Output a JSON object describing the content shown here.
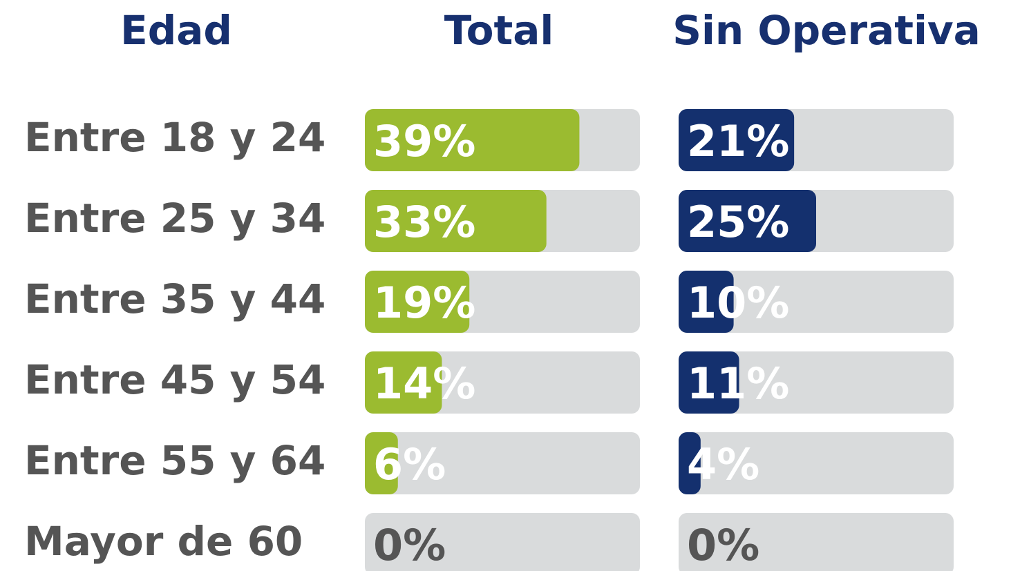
{
  "chart_data": {
    "type": "bar",
    "orientation": "horizontal",
    "category_label": "Edad",
    "categories": [
      "Entre 18 y 24",
      "Entre 25 y 34",
      "Entre 35 y 44",
      "Entre 45 y 54",
      "Entre 55 y 64",
      "Mayor de 60"
    ],
    "series": [
      {
        "name": "Total",
        "color": "#9bbb30",
        "values": [
          39,
          33,
          19,
          14,
          6,
          0
        ],
        "value_labels": [
          "39%",
          "33%",
          "19%",
          "14%",
          "6%",
          "0%"
        ]
      },
      {
        "name": "Sin Operativa",
        "color": "#14306e",
        "values": [
          21,
          25,
          10,
          11,
          4,
          0
        ],
        "value_labels": [
          "21%",
          "25%",
          "10%",
          "11%",
          "4%",
          "0%"
        ]
      }
    ],
    "xlim": [
      0,
      50
    ]
  }
}
